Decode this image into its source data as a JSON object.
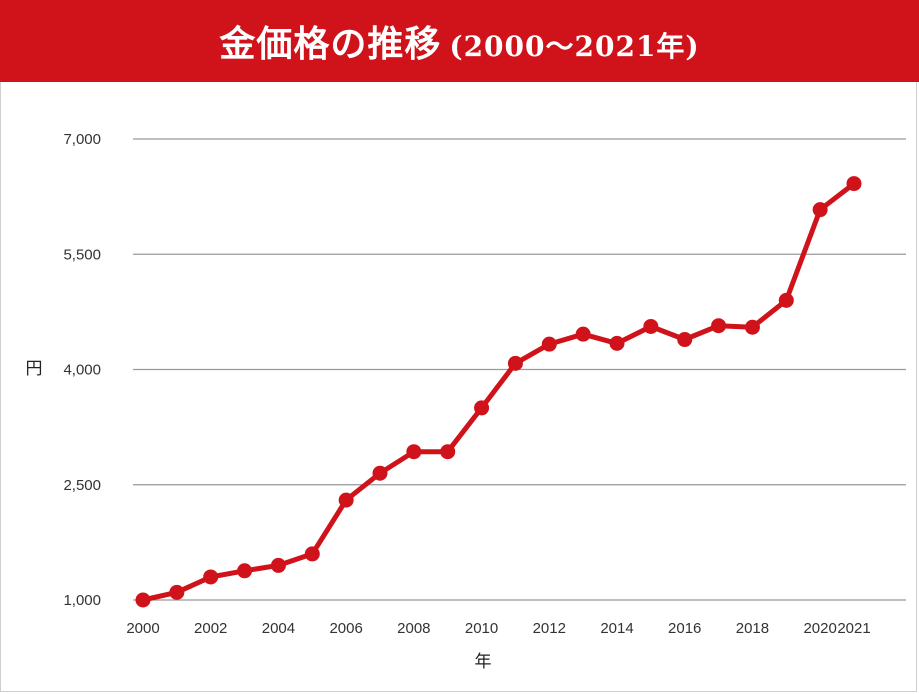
{
  "header": {
    "title": "金価格の推移",
    "subtitle": "(2000〜2021年)"
  },
  "colors": {
    "band": "#d0121b",
    "series": "#d0121b",
    "grid": "#9a9a9a"
  },
  "chart_data": {
    "type": "line",
    "title": "金価格の推移 (2000〜2021年)",
    "xlabel": "年",
    "ylabel": "円",
    "x": [
      2000,
      2001,
      2002,
      2003,
      2004,
      2005,
      2006,
      2007,
      2008,
      2009,
      2010,
      2011,
      2012,
      2013,
      2014,
      2015,
      2016,
      2017,
      2018,
      2019,
      2020,
      2021
    ],
    "series": [
      {
        "values": [
          1000,
          1100,
          1300,
          1380,
          1450,
          1600,
          2300,
          2650,
          2930,
          2930,
          3500,
          4080,
          4330,
          4460,
          4340,
          4560,
          4390,
          4570,
          4550,
          4900,
          6080,
          6420
        ]
      }
    ],
    "x_ticks": [
      "2000",
      "2002",
      "2004",
      "2006",
      "2008",
      "2010",
      "2012",
      "2014",
      "2016",
      "2018",
      "2020",
      "2021"
    ],
    "y_ticks": [
      "1,000",
      "2,500",
      "4,000",
      "5,500",
      "7,000"
    ],
    "ylim": [
      1000,
      7000
    ],
    "xlim": [
      2000,
      2021
    ],
    "grid": "horizontal",
    "legend": "none"
  }
}
